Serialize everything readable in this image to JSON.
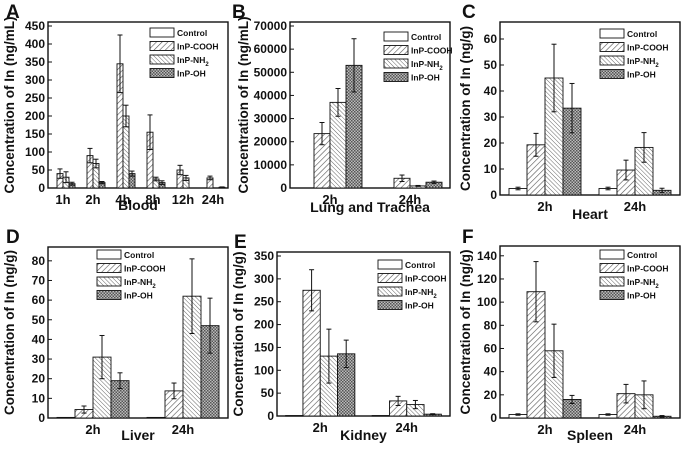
{
  "chart_data": [
    {
      "panel": "A",
      "type": "bar",
      "title": "",
      "xlabel": "Blood",
      "ylabel": "Concentration of In (ng/mL)",
      "categories": [
        "1h",
        "2h",
        "4h",
        "8h",
        "12h",
        "24h"
      ],
      "ylim": [
        0,
        450
      ],
      "yticks": [
        0,
        50,
        100,
        150,
        200,
        250,
        300,
        350,
        400,
        450
      ],
      "legend": "top-right",
      "series": [
        {
          "name": "Control",
          "values": [
            0,
            0,
            0,
            0,
            0,
            0
          ],
          "errors": [
            0,
            0,
            0,
            0,
            0,
            0
          ]
        },
        {
          "name": "InP-COOH",
          "values": [
            40,
            90,
            345,
            155,
            50,
            28
          ],
          "errors": [
            13,
            20,
            80,
            48,
            13,
            5
          ]
        },
        {
          "name": "InP-NH2",
          "values": [
            30,
            68,
            200,
            25,
            28,
            0
          ],
          "errors": [
            15,
            12,
            30,
            5,
            7,
            0
          ]
        },
        {
          "name": "InP-OH",
          "values": [
            12,
            15,
            40,
            15,
            0,
            2
          ],
          "errors": [
            4,
            3,
            7,
            5,
            0,
            1
          ]
        }
      ]
    },
    {
      "panel": "B",
      "type": "bar",
      "title": "",
      "xlabel": "Lung and Trachea",
      "ylabel": "Concentration of In (ng/mL)",
      "categories": [
        "2h",
        "24h"
      ],
      "ylim": [
        0,
        70000
      ],
      "yticks": [
        0,
        10000,
        20000,
        30000,
        40000,
        50000,
        60000,
        70000
      ],
      "legend": "top-right",
      "series": [
        {
          "name": "Control",
          "values": [
            0,
            0
          ],
          "errors": [
            0,
            0
          ]
        },
        {
          "name": "InP-COOH",
          "values": [
            23500,
            4200
          ],
          "errors": [
            4800,
            1400
          ]
        },
        {
          "name": "InP-NH2",
          "values": [
            37000,
            900
          ],
          "errors": [
            6000,
            200
          ]
        },
        {
          "name": "InP-OH",
          "values": [
            53000,
            2500
          ],
          "errors": [
            11500,
            500
          ]
        }
      ]
    },
    {
      "panel": "C",
      "type": "bar",
      "title": "",
      "xlabel": "Heart",
      "ylabel": "Concentration of In (ng/g)",
      "categories": [
        "2h",
        "24h"
      ],
      "ylim": [
        0,
        65
      ],
      "yticks": [
        0,
        10,
        20,
        30,
        40,
        50,
        60
      ],
      "legend": "top-right",
      "series": [
        {
          "name": "Control",
          "values": [
            2.5,
            2.5
          ],
          "errors": [
            0.5,
            0.5
          ]
        },
        {
          "name": "InP-COOH",
          "values": [
            19.3,
            9.6
          ],
          "errors": [
            4.4,
            3.8
          ]
        },
        {
          "name": "InP-NH2",
          "values": [
            45,
            18.3
          ],
          "errors": [
            13,
            5.7
          ]
        },
        {
          "name": "InP-OH",
          "values": [
            33.4,
            1.8
          ],
          "errors": [
            9.5,
            0.8
          ]
        }
      ]
    },
    {
      "panel": "D",
      "type": "bar",
      "title": "",
      "xlabel": "Liver",
      "ylabel": "Concentration of In (ng/g)",
      "categories": [
        "2h",
        "24h"
      ],
      "ylim": [
        0,
        85
      ],
      "yticks": [
        0,
        10,
        20,
        30,
        40,
        50,
        60,
        70,
        80
      ],
      "legend": "top-center",
      "series": [
        {
          "name": "Control",
          "values": [
            0.3,
            0.3
          ],
          "errors": [
            0,
            0
          ]
        },
        {
          "name": "InP-COOH",
          "values": [
            4.3,
            13.8
          ],
          "errors": [
            1.8,
            4
          ]
        },
        {
          "name": "InP-NH2",
          "values": [
            31,
            62
          ],
          "errors": [
            11,
            19
          ]
        },
        {
          "name": "InP-OH",
          "values": [
            19,
            47
          ],
          "errors": [
            4,
            14
          ]
        }
      ]
    },
    {
      "panel": "E",
      "type": "bar",
      "title": "",
      "xlabel": "Kidney",
      "ylabel": "Concentration of In (ng/g)",
      "categories": [
        "2h",
        "24h"
      ],
      "ylim": [
        0,
        350
      ],
      "yticks": [
        0,
        50,
        100,
        150,
        200,
        250,
        300,
        350
      ],
      "legend": "top-right",
      "series": [
        {
          "name": "Control",
          "values": [
            1,
            1
          ],
          "errors": [
            0,
            0
          ]
        },
        {
          "name": "InP-COOH",
          "values": [
            275,
            33
          ],
          "errors": [
            45,
            10
          ]
        },
        {
          "name": "InP-NH2",
          "values": [
            131,
            25
          ],
          "errors": [
            59,
            9
          ]
        },
        {
          "name": "InP-OH",
          "values": [
            136,
            4
          ],
          "errors": [
            30,
            1
          ]
        }
      ]
    },
    {
      "panel": "F",
      "type": "bar",
      "title": "",
      "xlabel": "Spleen",
      "ylabel": "Concentration of In (ng/g)",
      "categories": [
        "2h",
        "24h"
      ],
      "ylim": [
        0,
        145
      ],
      "yticks": [
        0,
        20,
        40,
        60,
        80,
        100,
        120,
        140
      ],
      "legend": "top-right",
      "series": [
        {
          "name": "Control",
          "values": [
            3,
            3
          ],
          "errors": [
            0.6,
            0.6
          ]
        },
        {
          "name": "InP-COOH",
          "values": [
            109,
            21
          ],
          "errors": [
            26,
            8
          ]
        },
        {
          "name": "InP-NH2",
          "values": [
            58,
            20
          ],
          "errors": [
            23,
            12
          ]
        },
        {
          "name": "InP-OH",
          "values": [
            16,
            1.5
          ],
          "errors": [
            3.5,
            0.6
          ]
        }
      ]
    }
  ],
  "legend_labels": [
    "Control",
    "InP-COOH",
    "InP-NH2",
    "InP-OH"
  ]
}
